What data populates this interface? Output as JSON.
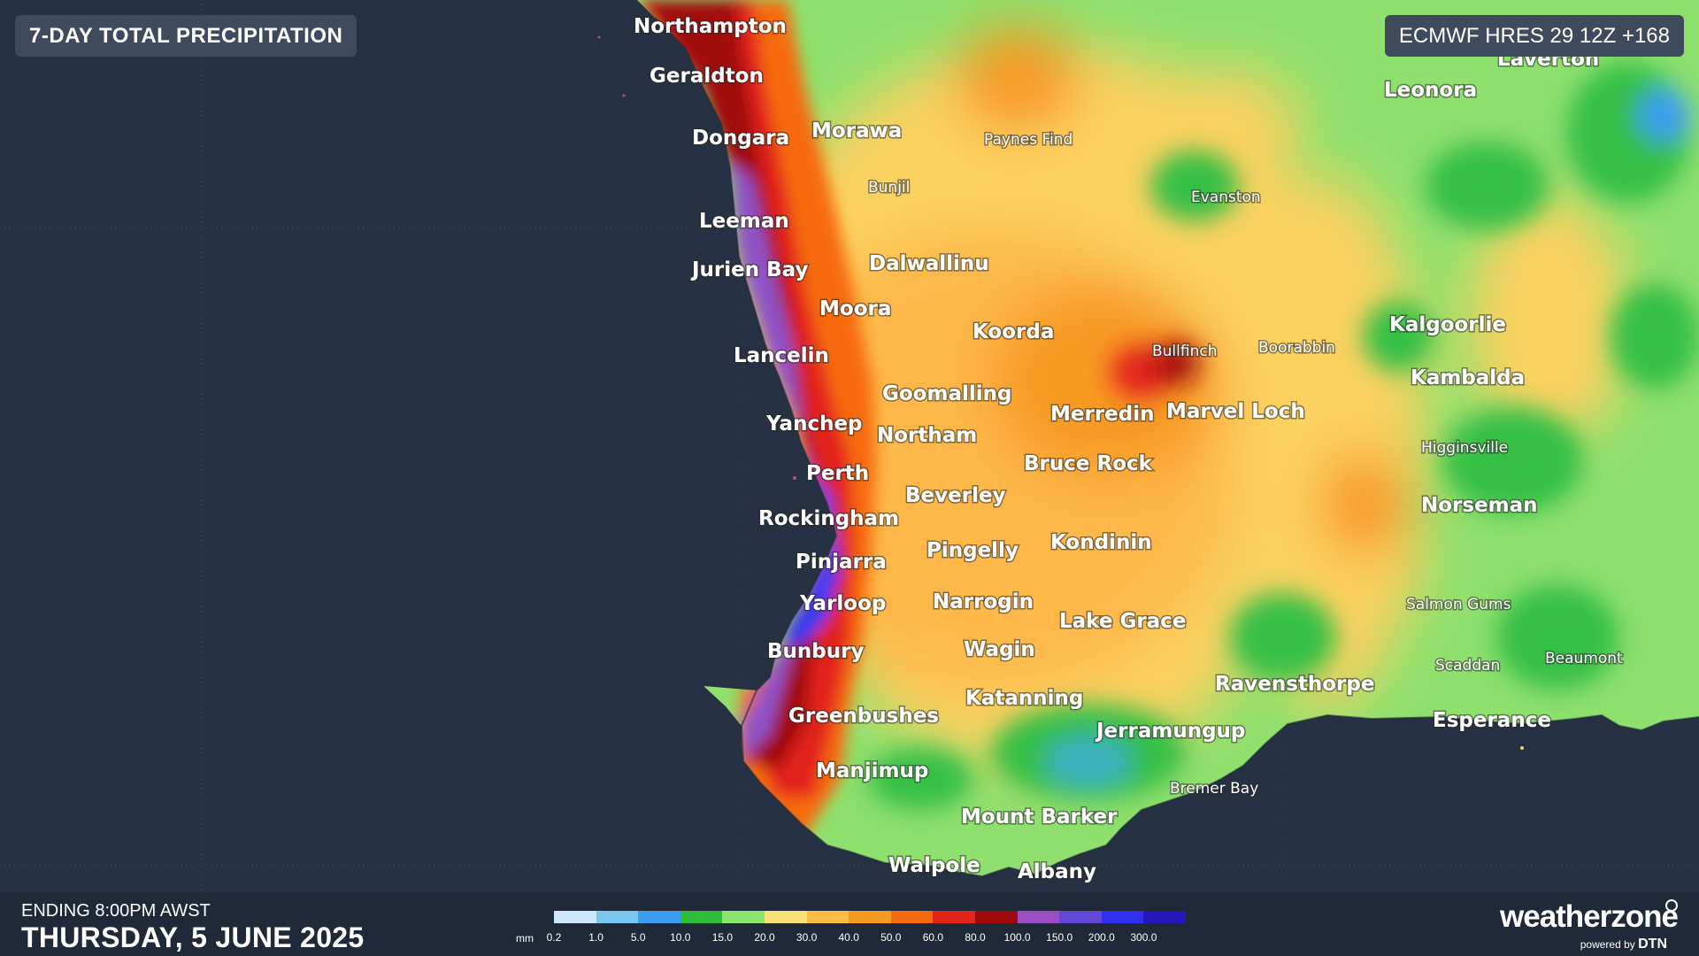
{
  "header": {
    "title": "7-DAY TOTAL PRECIPITATION",
    "model_run": "ECMWF HRES 29 12Z +168"
  },
  "footer": {
    "ending_label": "ENDING 8:00PM AWST",
    "date": "THURSDAY, 5 JUNE 2025",
    "legend": {
      "unit": "mm",
      "ticks": [
        "0.2",
        "1.0",
        "5.0",
        "10.0",
        "15.0",
        "20.0",
        "30.0",
        "40.0",
        "50.0",
        "60.0",
        "80.0",
        "100.0",
        "150.0",
        "200.0",
        "300.0"
      ],
      "colors": [
        "#cde8f8",
        "#7dc6f2",
        "#3b9cf0",
        "#2fbd3a",
        "#8ae56f",
        "#f7e27a",
        "#fdbc45",
        "#f79a20",
        "#f66a10",
        "#e3241b",
        "#9e0a0a",
        "#9b4ec4",
        "#6248d6",
        "#2f2ff2",
        "#2418b8"
      ]
    },
    "brand": {
      "name": "weatherzone",
      "powered_by": "powered by",
      "partner": "DTN"
    }
  },
  "colors": {
    "ocean": "#263244",
    "coast_purple": "#8f52c7",
    "coast_blue": "#3a3bf0",
    "dark_red": "#a10b0b",
    "red": "#e3241b",
    "orange": "#f79a20",
    "yellow": "#fbd160",
    "light_green": "#8fe06e",
    "green": "#34bf45",
    "blue": "#3b9cf0"
  },
  "places": [
    {
      "name": "Northampton",
      "size": "large"
    },
    {
      "name": "Geraldton",
      "size": "large"
    },
    {
      "name": "Dongara",
      "size": "large"
    },
    {
      "name": "Morawa",
      "size": "large"
    },
    {
      "name": "Paynes Find",
      "size": "small"
    },
    {
      "name": "Bunjil",
      "size": "small"
    },
    {
      "name": "Evanston",
      "size": "small"
    },
    {
      "name": "Laverton",
      "size": "large"
    },
    {
      "name": "Leonora",
      "size": "large"
    },
    {
      "name": "Leeman",
      "size": "large"
    },
    {
      "name": "Jurien Bay",
      "size": "large"
    },
    {
      "name": "Dalwallinu",
      "size": "large"
    },
    {
      "name": "Moora",
      "size": "large"
    },
    {
      "name": "Koorda",
      "size": "large"
    },
    {
      "name": "Lancelin",
      "size": "large"
    },
    {
      "name": "Bullfinch",
      "size": "small"
    },
    {
      "name": "Boorabbin",
      "size": "small"
    },
    {
      "name": "Kalgoorlie",
      "size": "large"
    },
    {
      "name": "Kambalda",
      "size": "large"
    },
    {
      "name": "Goomalling",
      "size": "large"
    },
    {
      "name": "Merredin",
      "size": "large"
    },
    {
      "name": "Marvel Loch",
      "size": "large"
    },
    {
      "name": "Yanchep",
      "size": "large"
    },
    {
      "name": "Northam",
      "size": "large"
    },
    {
      "name": "Higginsville",
      "size": "small"
    },
    {
      "name": "Perth",
      "size": "large"
    },
    {
      "name": "Bruce Rock",
      "size": "large"
    },
    {
      "name": "Beverley",
      "size": "large"
    },
    {
      "name": "Norseman",
      "size": "large"
    },
    {
      "name": "Rockingham",
      "size": "large"
    },
    {
      "name": "Kondinin",
      "size": "large"
    },
    {
      "name": "Pingelly",
      "size": "large"
    },
    {
      "name": "Pinjarra",
      "size": "large"
    },
    {
      "name": "Narrogin",
      "size": "large"
    },
    {
      "name": "Yarloop",
      "size": "large"
    },
    {
      "name": "Lake Grace",
      "size": "large"
    },
    {
      "name": "Salmon Gums",
      "size": "small"
    },
    {
      "name": "Wagin",
      "size": "large"
    },
    {
      "name": "Bunbury",
      "size": "large"
    },
    {
      "name": "Scaddan",
      "size": "small"
    },
    {
      "name": "Beaumont",
      "size": "small"
    },
    {
      "name": "Ravensthorpe",
      "size": "large"
    },
    {
      "name": "Katanning",
      "size": "large"
    },
    {
      "name": "Greenbushes",
      "size": "large"
    },
    {
      "name": "Esperance",
      "size": "large"
    },
    {
      "name": "Jerramungup",
      "size": "large"
    },
    {
      "name": "Manjimup",
      "size": "large"
    },
    {
      "name": "Bremer Bay",
      "size": "small"
    },
    {
      "name": "Mount Barker",
      "size": "large"
    },
    {
      "name": "Walpole",
      "size": "large"
    },
    {
      "name": "Albany",
      "size": "large"
    }
  ]
}
